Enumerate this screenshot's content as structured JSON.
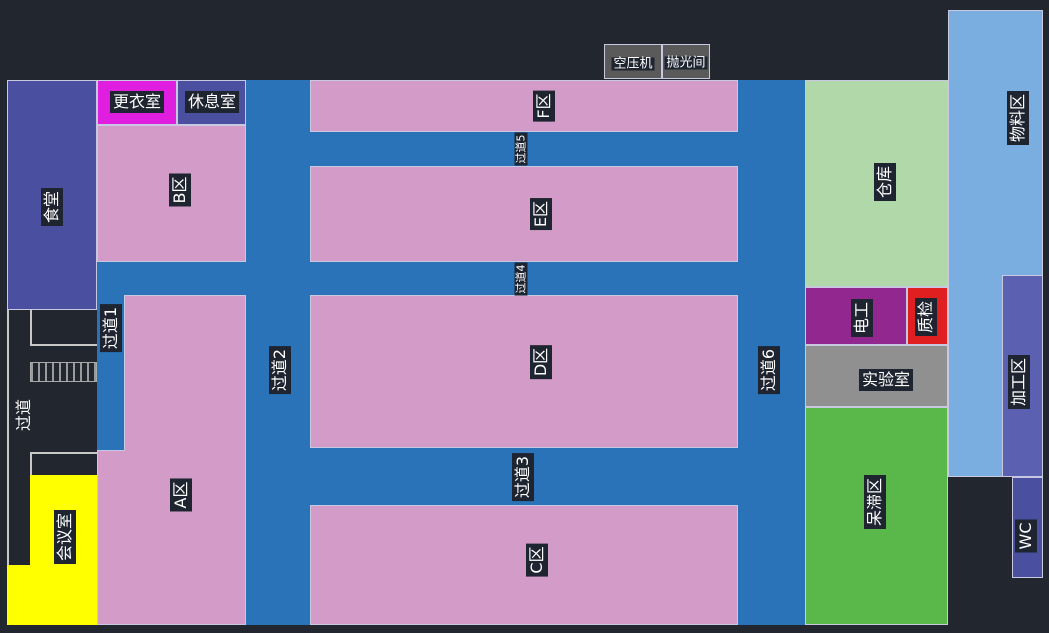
{
  "colors": {
    "background": "#22272f",
    "corridor": "#2a73b8",
    "zone": "#d39cc8",
    "canteen": "#4a4fa0",
    "locker": "#e01ee0",
    "warehouse": "#b0d8a8",
    "electric": "#92278f",
    "qc": "#e02020",
    "lab": "#909090",
    "idle": "#5ab84a",
    "material": "#7aaee0",
    "processing": "#5c60b0",
    "meeting": "#ffff00"
  },
  "rooms": {
    "canteen": "食堂",
    "locker": "更衣室",
    "rest": "休息室",
    "zone_b": "B区",
    "zone_f": "F区",
    "zone_e": "E区",
    "zone_d": "D区",
    "zone_c": "C区",
    "zone_a": "A区",
    "aisle1": "过道1",
    "aisle2": "过道2",
    "aisle3": "过道3",
    "aisle4": "过道4",
    "aisle5": "过道5",
    "aisle6": "过道6",
    "aisle": "过道",
    "meeting": "会议室",
    "warehouse": "仓库",
    "electric": "电工",
    "qc": "质检",
    "lab": "实验室",
    "idle": "呆滞区",
    "material": "物料区",
    "processing": "加工区",
    "wc": "WC",
    "compressor": "空压机",
    "polishing": "抛光间"
  }
}
